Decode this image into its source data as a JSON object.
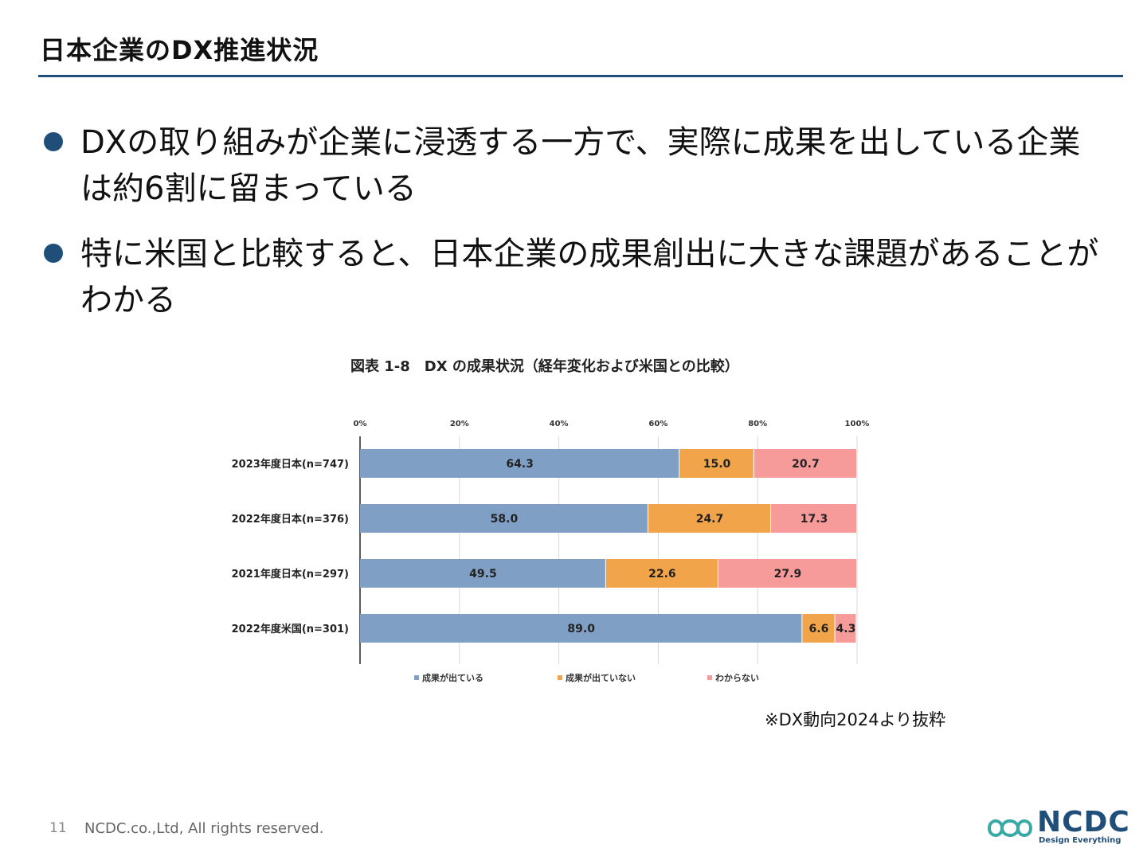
{
  "slide": {
    "title": "日本企業のDX推進状況",
    "bullets": [
      "DXの取り組みが企業に浸透する一方で、実際に成果を出している企業は約6割に留まっている",
      "特に米国と比較すると、日本企業の成果創出に大きな課題があることがわかる"
    ],
    "source_note": "※DX動向2024より抜粋"
  },
  "footer": {
    "page_number": "11",
    "copyright": "NCDC.co.,Ltd, All rights reserved.",
    "logo_text": "NCDC",
    "logo_tagline": "Design Everything"
  },
  "colors": {
    "accent": "#1f4e79",
    "series_1": "#7f9fc4",
    "series_2": "#f2a44a",
    "series_3": "#f79a9a"
  },
  "chart_data": {
    "type": "bar",
    "orientation": "horizontal",
    "stacked": true,
    "title": "図表 1-8　DX の成果状況（経年変化および米国との比較）",
    "categories": [
      "2023年度日本(n=747)",
      "2022年度日本(n=376)",
      "2021年度日本(n=297)",
      "2022年度米国(n=301)"
    ],
    "series": [
      {
        "name": "成果が出ている",
        "values": [
          64.3,
          58.0,
          49.5,
          89.0
        ],
        "color": "#7f9fc4"
      },
      {
        "name": "成果が出ていない",
        "values": [
          15.0,
          24.7,
          22.6,
          6.6
        ],
        "color": "#f2a44a"
      },
      {
        "name": "わからない",
        "values": [
          20.7,
          17.3,
          27.9,
          4.3
        ],
        "color": "#f79a9a"
      }
    ],
    "x_ticks": [
      "0%",
      "20%",
      "40%",
      "60%",
      "80%",
      "100%"
    ],
    "xlim": [
      0,
      100
    ],
    "axis_position": "top",
    "grid": true,
    "legend": "bottom"
  }
}
